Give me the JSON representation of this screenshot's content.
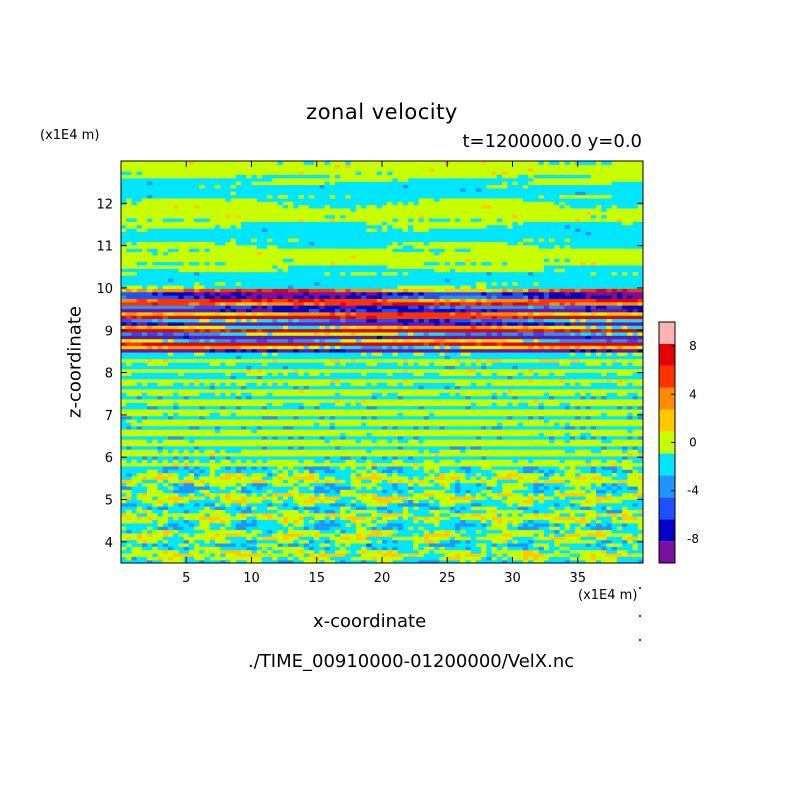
{
  "chart_data": {
    "type": "heatmap",
    "title": "zonal velocity",
    "subtitle": "t=1200000.0 y=0.0",
    "xlabel": "x-coordinate",
    "ylabel": "z-coordinate",
    "x_unit_label": "(x1E4 m)",
    "y_unit_label": "(x1E4 m)",
    "source_file": "./TIME_00910000-01200000/VelX.nc",
    "xlim": [
      0,
      40
    ],
    "ylim": [
      3.5,
      13
    ],
    "x_ticks": [
      5,
      10,
      15,
      20,
      25,
      30,
      35
    ],
    "x_tick_labels": [
      "5",
      "10",
      "15",
      "20",
      "25",
      "30",
      "35"
    ],
    "y_ticks": [
      4,
      5,
      6,
      7,
      8,
      9,
      10,
      11,
      12
    ],
    "y_tick_labels": [
      "4",
      "5",
      "6",
      "7",
      "8",
      "9",
      "10",
      "11",
      "12"
    ],
    "colorbar": {
      "levels": [
        -10,
        -8,
        -6,
        -4,
        -2,
        0,
        2,
        4,
        6,
        8,
        10
      ],
      "tick_values": [
        -8,
        -4,
        0,
        4,
        8
      ],
      "tick_labels": [
        "-8",
        "-4",
        "0",
        "4",
        "8"
      ],
      "colors": [
        "#7a0fa0",
        "#0000c8",
        "#1e50ff",
        "#1e96ff",
        "#00e6ff",
        "#c8ff00",
        "#ffc800",
        "#ff8c00",
        "#ff3200",
        "#e60000",
        "#ffb4b4"
      ]
    },
    "bands": [
      {
        "z_from": 3.5,
        "z_to": 5.8,
        "pattern": "mixed",
        "dominant_range": [
          -2,
          2
        ],
        "extremes": [
          -6,
          4
        ]
      },
      {
        "z_from": 5.8,
        "z_to": 8.5,
        "pattern": "layered",
        "dominant_range": [
          -2,
          2
        ],
        "extremes": [
          -4,
          4
        ]
      },
      {
        "z_from": 8.5,
        "z_to": 10.0,
        "pattern": "strong-jets",
        "dominant_range": [
          -10,
          10
        ],
        "extremes": [
          -10,
          10
        ]
      },
      {
        "z_from": 10.0,
        "z_to": 13.0,
        "pattern": "weak",
        "dominant_range": [
          -2,
          2
        ],
        "extremes": [
          -4,
          4
        ]
      }
    ]
  }
}
